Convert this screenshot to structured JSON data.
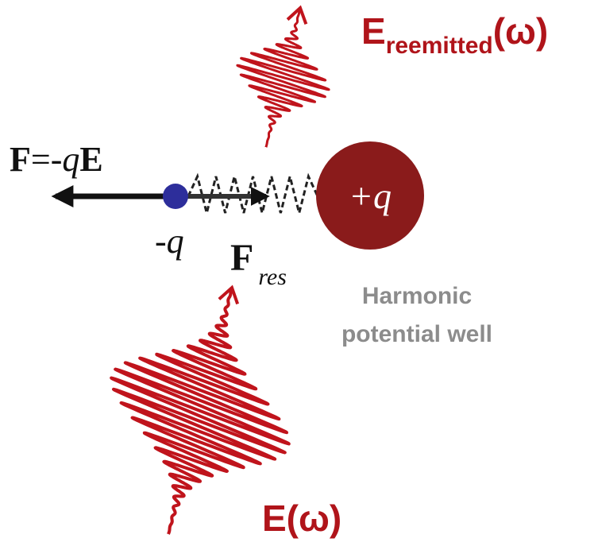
{
  "applied_force": {
    "symbol": "F",
    "sign": "=-",
    "charge": "q",
    "field": "E"
  },
  "electron": {
    "label": "-q"
  },
  "restoring_force": {
    "symbol": "F",
    "subscript": "res"
  },
  "nucleus": {
    "label": "+q"
  },
  "well_label": {
    "lines": [
      "Harmonic",
      "potential well"
    ]
  },
  "reemitted_field": {
    "symbol": "E",
    "subscript": "reemitted",
    "argument": "(ω)"
  },
  "incident_field": {
    "label": "E(ω)"
  }
}
